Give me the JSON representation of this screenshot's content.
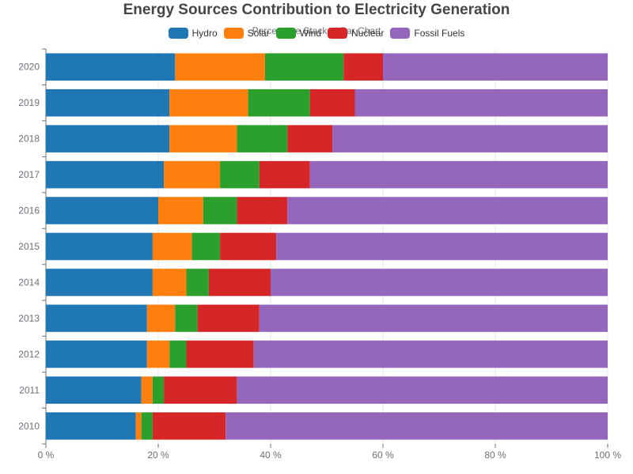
{
  "chart_data": {
    "type": "bar",
    "orientation": "horizontal",
    "stacked": true,
    "title": "Energy Sources Contribution to Electricity Generation",
    "subtitle": "Percentage Stacked Bar Chart",
    "categories": [
      "2010",
      "2011",
      "2012",
      "2013",
      "2014",
      "2015",
      "2016",
      "2017",
      "2018",
      "2019",
      "2020"
    ],
    "series": [
      {
        "name": "Hydro",
        "color": "#1f77b4",
        "values": [
          16,
          17,
          18,
          18,
          19,
          19,
          20,
          21,
          22,
          22,
          23
        ]
      },
      {
        "name": "Solar",
        "color": "#ff7f0e",
        "values": [
          1,
          2,
          4,
          5,
          6,
          7,
          8,
          10,
          12,
          14,
          16
        ]
      },
      {
        "name": "Wind",
        "color": "#2ca02c",
        "values": [
          2,
          2,
          3,
          4,
          4,
          5,
          6,
          7,
          9,
          11,
          14
        ]
      },
      {
        "name": "Nuclear",
        "color": "#d62728",
        "values": [
          13,
          13,
          12,
          11,
          11,
          10,
          9,
          9,
          8,
          8,
          7
        ]
      },
      {
        "name": "Fossil Fuels",
        "color": "#9467bd",
        "values": [
          68,
          66,
          63,
          62,
          60,
          59,
          57,
          53,
          49,
          45,
          40
        ]
      }
    ],
    "xlim": [
      0,
      100
    ],
    "xticks": [
      "0 %",
      "20 %",
      "40 %",
      "60 %",
      "80 %",
      "100 %"
    ],
    "grid": true,
    "legend": "top-center"
  }
}
